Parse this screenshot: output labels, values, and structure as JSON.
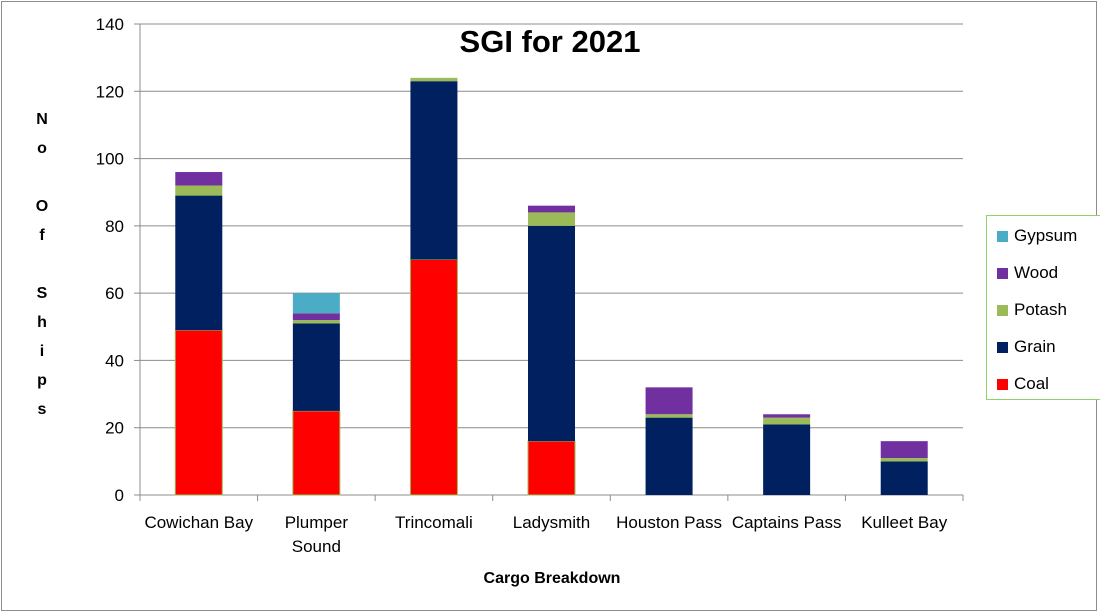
{
  "chart_data": {
    "type": "bar",
    "stacked": true,
    "title": "SGI for 2021",
    "xlabel": "Cargo Breakdown",
    "ylabel": "No Of Ships",
    "ylim": [
      0,
      140
    ],
    "yticks": [
      0,
      20,
      40,
      60,
      80,
      100,
      120,
      140
    ],
    "grid": true,
    "legend_position": "right",
    "categories": [
      "Cowichan Bay",
      "Plumper Sound",
      "Trincomali",
      "Ladysmith",
      "Houston Pass",
      "Captains Pass",
      "Kulleet Bay"
    ],
    "series": [
      {
        "name": "Coal",
        "color": "#ff0000",
        "values": [
          49,
          25,
          70,
          16,
          0,
          0,
          0
        ]
      },
      {
        "name": "Grain",
        "color": "#002060",
        "values": [
          40,
          26,
          53,
          64,
          23,
          21,
          10
        ]
      },
      {
        "name": "Potash",
        "color": "#9bbb59",
        "values": [
          3,
          1,
          1,
          4,
          1,
          2,
          1
        ]
      },
      {
        "name": "Wood",
        "color": "#7030a0",
        "values": [
          4,
          2,
          0,
          2,
          8,
          1,
          5
        ]
      },
      {
        "name": "Gypsum",
        "color": "#4bacc6",
        "values": [
          0,
          6,
          0,
          0,
          0,
          0,
          0
        ]
      }
    ],
    "legend_order": [
      "Gypsum",
      "Wood",
      "Potash",
      "Grain",
      "Coal"
    ]
  }
}
